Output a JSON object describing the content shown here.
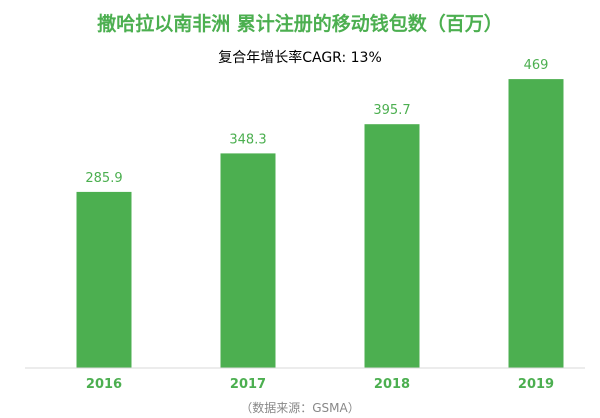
{
  "chart_data": {
    "type": "bar",
    "title": "撒哈拉以南非洲 累计注册的移动钱包数（百万）",
    "subtitle": "复合年增长率CAGR: 13%",
    "categories": [
      "2016",
      "2017",
      "2018",
      "2019"
    ],
    "values": [
      285.9,
      348.3,
      395.7,
      469
    ],
    "value_labels": [
      "285.9",
      "348.3",
      "395.7",
      "469"
    ],
    "ylim": [
      0,
      500
    ],
    "grid": false,
    "legend": "none",
    "source": "（数据来源：GSMA）"
  },
  "colors": {
    "bar": "#4caf50",
    "title": "#4caf50",
    "subtitle": "#000000",
    "value_label": "#4caf50",
    "tick_label": "#4caf50",
    "source": "#888888",
    "baseline": "#d9d9d9"
  }
}
